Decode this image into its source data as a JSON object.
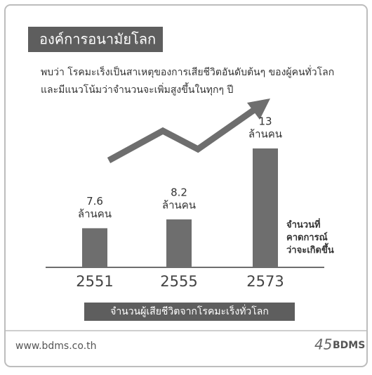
{
  "header": {
    "title": "องค์การอนามัยโลก",
    "subtitle_lines": [
      "พบว่า โรคมะเร็งเป็นสาเหตุของการเสียชีวิตอันดับต้นๆ ของผู้คนทั่วโลก",
      "และมีแนวโน้มว่าจำนวนจะเพิ่มสูงขึ้นในทุกๆ ปี"
    ]
  },
  "chart_data": {
    "type": "bar",
    "categories": [
      "2551",
      "2555",
      "2573"
    ],
    "values": [
      7.6,
      8.2,
      13
    ],
    "value_labels": [
      "7.6",
      "8.2",
      "13"
    ],
    "unit_label": "ล้านคน",
    "color": "#6e6e6e",
    "ylim": [
      5,
      14
    ],
    "annotation_lines": [
      "จำนวนที่",
      "คาดการณ์",
      "ว่าจะเกิดขึ้น"
    ],
    "caption": "จำนวนผู้เสียชีวิตจากโรคมะเร็งทั่วโลก"
  },
  "footer": {
    "url": "www.bdms.co.th",
    "logo_number": "45",
    "logo_text": "BDMS"
  }
}
